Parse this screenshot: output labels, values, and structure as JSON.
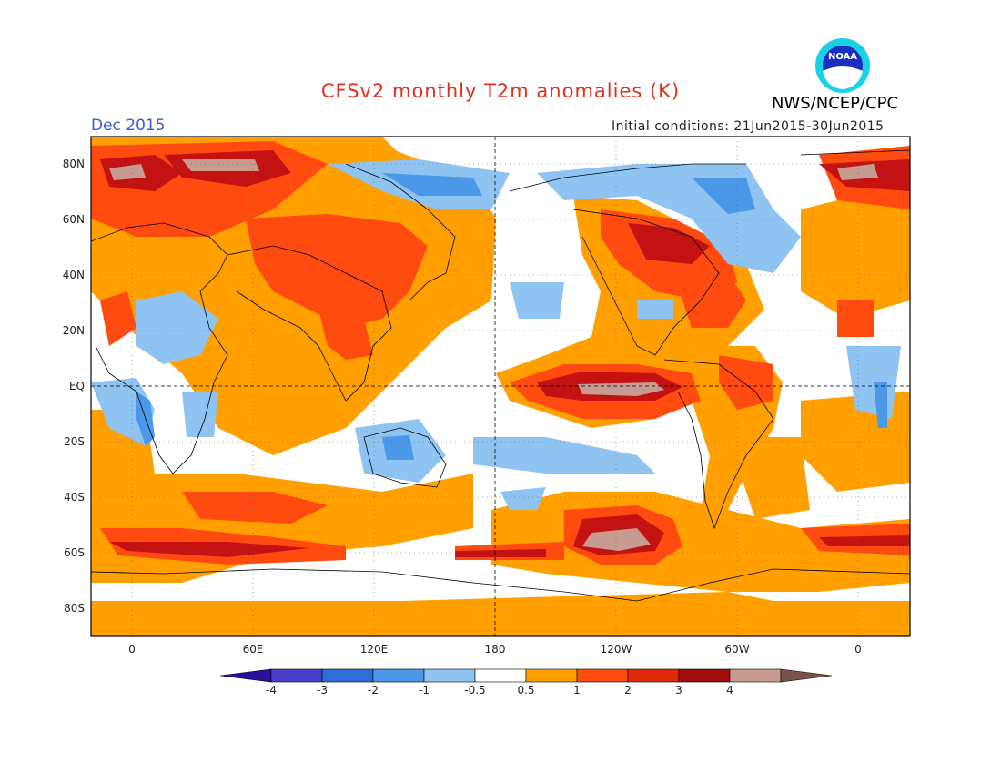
{
  "title": "CFSv2 monthly T2m anomalies (K)",
  "organization": "NWS/NCEP/CPC",
  "logo_text": "NOAA",
  "valid_month": "Dec 2015",
  "initial_conditions": "Initial conditions: 21Jun2015-30Jun2015",
  "lat_labels": [
    "80N",
    "60N",
    "40N",
    "20N",
    "EQ",
    "20S",
    "40S",
    "60S",
    "80S"
  ],
  "lon_labels": [
    "0",
    "60E",
    "120E",
    "180",
    "120W",
    "60W",
    "0"
  ],
  "colorbar": {
    "labels": [
      "-4",
      "-3",
      "-2",
      "-1",
      "-0.5",
      "0.5",
      "1",
      "2",
      "3",
      "4"
    ],
    "colors": [
      "#2a0f9e",
      "#4a3fc9",
      "#2d6fd6",
      "#4b97e8",
      "#8fc4f2",
      "#ffffff",
      "#ffa000",
      "#ff4a10",
      "#e02a0a",
      "#a10d0d",
      "#c79b90",
      "#7a5248"
    ]
  },
  "colors": {
    "title": "#e0301e",
    "month": "#3a5bd9"
  }
}
